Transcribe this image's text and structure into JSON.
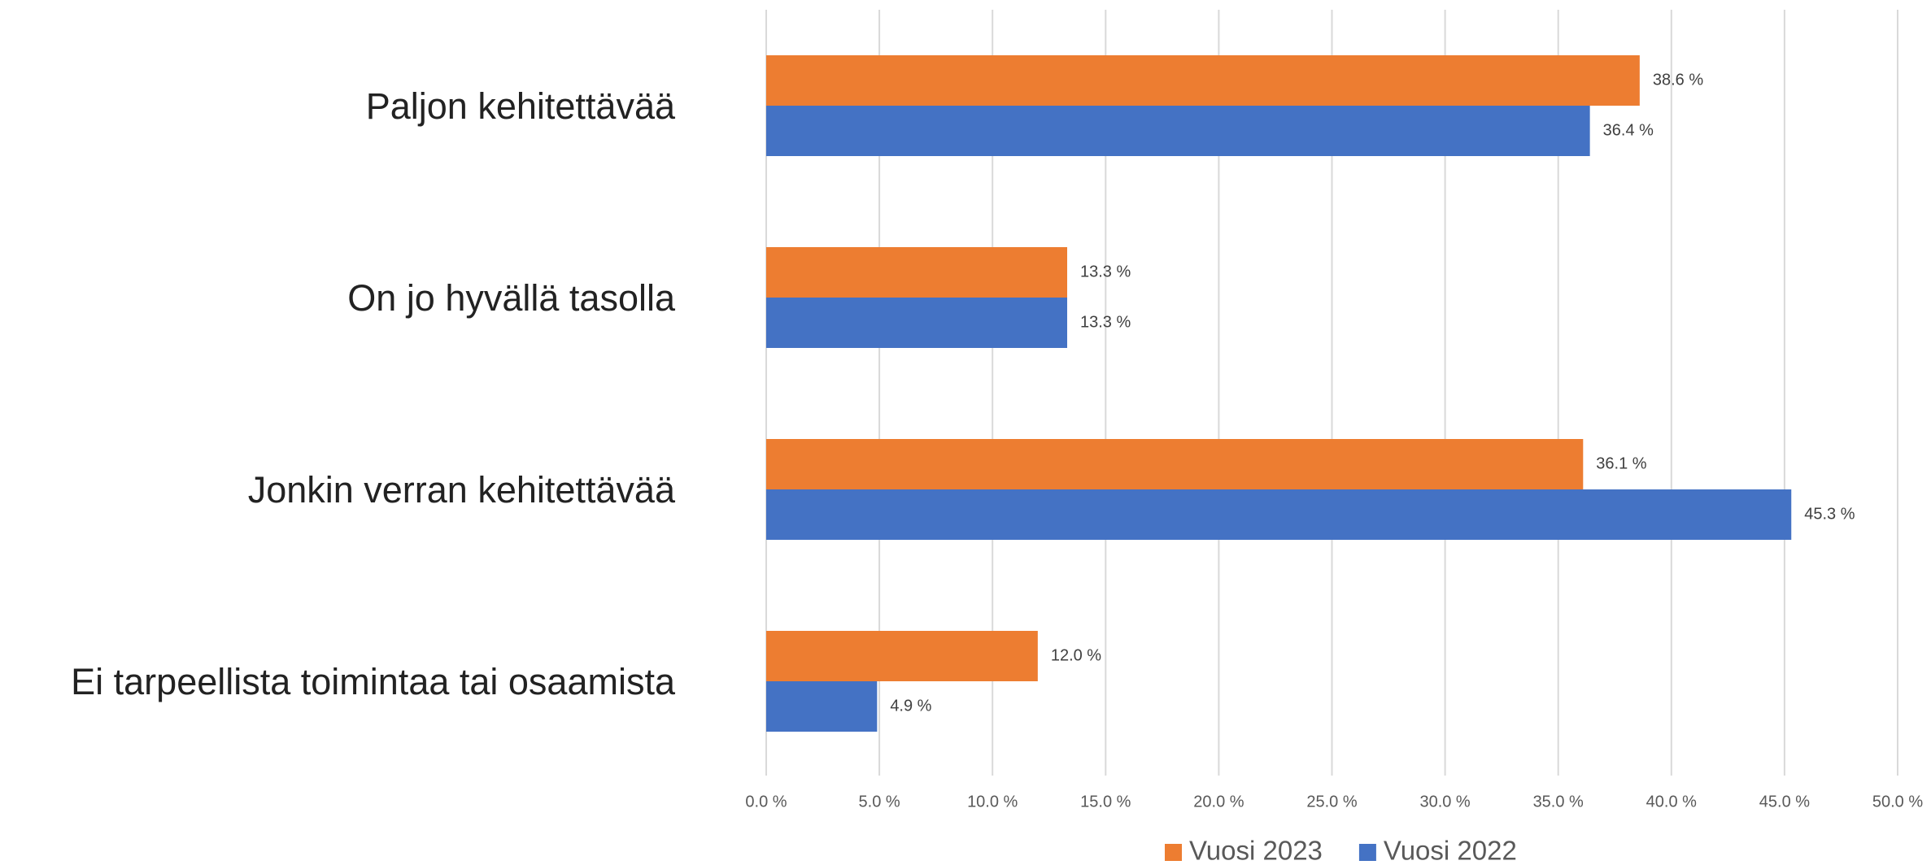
{
  "chart_data": {
    "type": "bar",
    "orientation": "horizontal",
    "categories": [
      "Paljon  kehitettävää",
      "On jo hyvällä tasolla",
      "Jonkin verran kehitettävää",
      "Ei tarpeellista toimintaa tai osaamista"
    ],
    "series": [
      {
        "name": "Vuosi 2023",
        "color": "#ed7d31",
        "values": [
          38.6,
          13.3,
          36.1,
          12.0
        ],
        "value_labels": [
          "38.6 %",
          "13.3 %",
          "36.1 %",
          "12.0 %"
        ]
      },
      {
        "name": "Vuosi 2022",
        "color": "#4472c4",
        "values": [
          36.4,
          13.3,
          45.3,
          4.9
        ],
        "value_labels": [
          "36.4 %",
          "13.3 %",
          "45.3 %",
          "4.9 %"
        ]
      }
    ],
    "xlim": [
      0,
      50
    ],
    "xticks": [
      {
        "value": 0,
        "label": "0.0 %"
      },
      {
        "value": 5,
        "label": "5.0 %"
      },
      {
        "value": 10,
        "label": "10.0 %"
      },
      {
        "value": 15,
        "label": "15.0 %"
      },
      {
        "value": 20,
        "label": "20.0 %"
      },
      {
        "value": 25,
        "label": "25.0 %"
      },
      {
        "value": 30,
        "label": "30.0 %"
      },
      {
        "value": 35,
        "label": "35.0 %"
      },
      {
        "value": 40,
        "label": "40.0 %"
      },
      {
        "value": 45,
        "label": "45.0 %"
      },
      {
        "value": 50,
        "label": "50.0 %"
      }
    ],
    "grid": true,
    "legend": "bottom"
  }
}
